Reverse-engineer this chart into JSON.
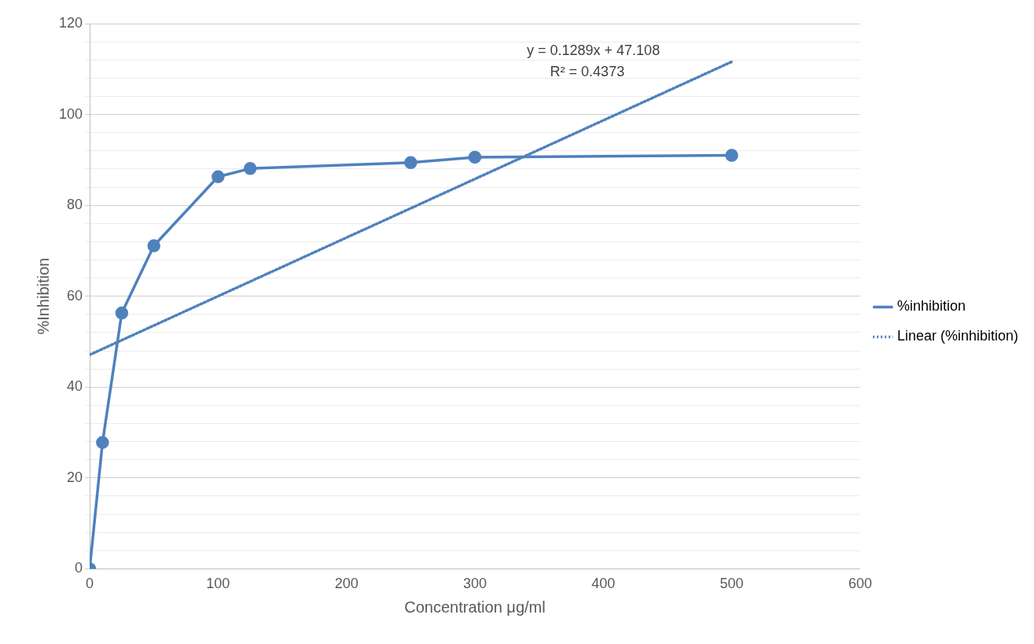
{
  "chart_data": {
    "type": "line",
    "xlabel": "Concentration μg/ml",
    "ylabel": "%Inhibition",
    "xlim": [
      0,
      600
    ],
    "xticks": [
      0,
      100,
      200,
      300,
      400,
      500,
      600
    ],
    "ylim": [
      0,
      120
    ],
    "yticks": [
      0,
      {
        "value": 4,
        "label": null
      },
      {
        "value": 8,
        "label": null
      },
      {
        "value": 12,
        "label": null
      },
      {
        "value": 16,
        "label": null
      },
      20,
      {
        "value": 24,
        "label": null
      },
      {
        "value": 28,
        "label": null
      },
      {
        "value": 32,
        "label": null
      },
      {
        "value": 36,
        "label": null
      },
      40,
      {
        "value": 44,
        "label": null
      },
      {
        "value": 48,
        "label": null
      },
      {
        "value": 52,
        "label": null
      },
      {
        "value": 56,
        "label": null
      },
      60,
      {
        "value": 64,
        "label": null
      },
      {
        "value": 68,
        "label": null
      },
      {
        "value": 72,
        "label": null
      },
      {
        "value": 76,
        "label": null
      },
      80,
      {
        "value": 84,
        "label": null
      },
      {
        "value": 88,
        "label": null
      },
      {
        "value": 92,
        "label": null
      },
      {
        "value": 96,
        "label": null
      },
      100,
      {
        "value": 104,
        "label": null
      },
      {
        "value": 108,
        "label": null
      },
      {
        "value": 112,
        "label": null
      },
      {
        "value": 116,
        "label": null
      },
      120
    ],
    "grid": "y",
    "legend": "right",
    "series": [
      {
        "name": "%inhibition",
        "color": "#4f81bd",
        "x": [
          0,
          10,
          25,
          50,
          100,
          125,
          250,
          300,
          500
        ],
        "values": [
          0,
          27.8,
          56.3,
          71.1,
          86.3,
          88.1,
          89.4,
          90.6,
          91.0
        ],
        "marker": "circle",
        "line_style": "solid"
      },
      {
        "name": "Linear (%inhibition)",
        "color": "#4f81bd",
        "x": [
          0,
          500
        ],
        "values": [
          47.1,
          111.6
        ],
        "marker": "none",
        "line_style": "dotted"
      }
    ],
    "annotations": [
      "y = 0.1289x + 47.108",
      "R² = 0.4373"
    ]
  }
}
